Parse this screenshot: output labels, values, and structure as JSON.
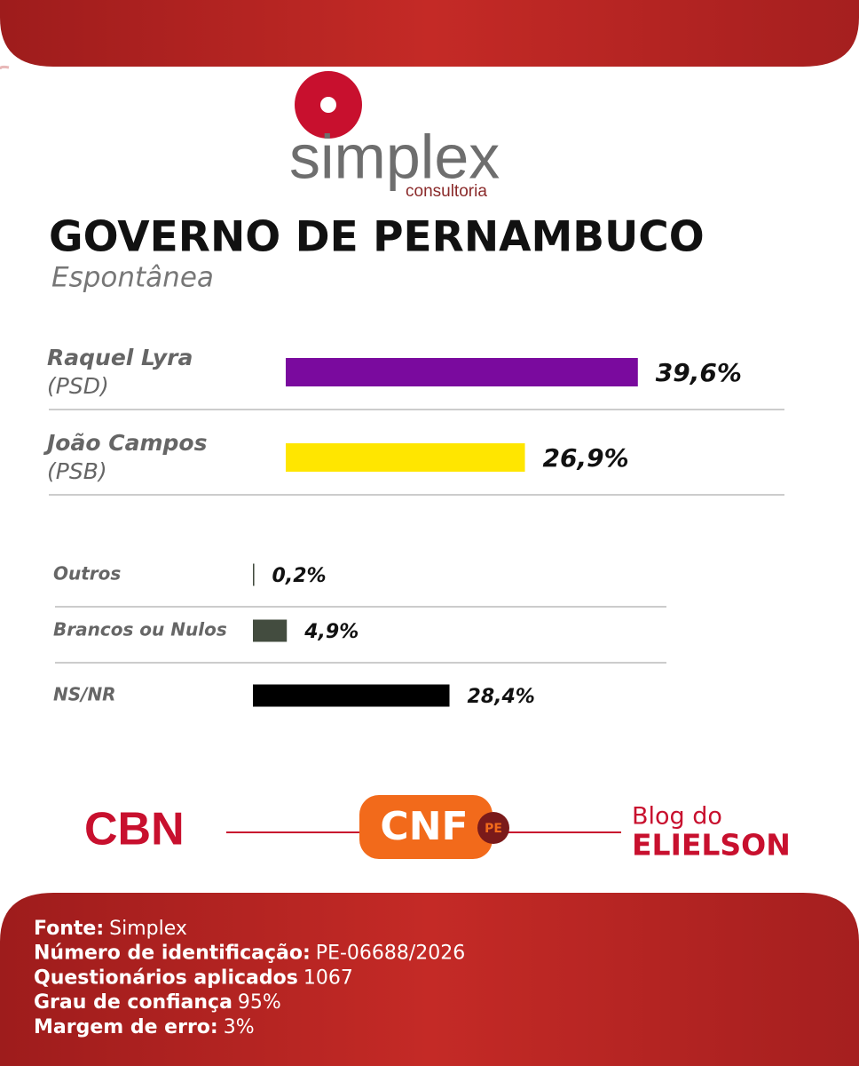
{
  "logos": {
    "brand": "simplex",
    "brand_sub": "consultoria",
    "partner1": "CBN",
    "partner2": "CNF",
    "partner2_tag": "PE",
    "partner3_top": "Blog do",
    "partner3_bottom": "ELIELSON"
  },
  "chart_data": [
    {
      "type": "bar",
      "title": "GOVERNO DE PERNAMBUCO",
      "subtitle": "Espontânea",
      "categories": [
        "Raquel Lyra",
        "João Campos"
      ],
      "parties": [
        "(PSD)",
        "(PSB)"
      ],
      "values": [
        39.6,
        26.9
      ],
      "value_labels": [
        "39,6%",
        "26,9%"
      ],
      "colors": [
        "#7a0a9e",
        "#ffe600"
      ]
    },
    {
      "type": "bar",
      "categories": [
        "Outros",
        "Brancos ou Nulos",
        "NS/NR"
      ],
      "values": [
        0.2,
        4.9,
        28.4
      ],
      "value_labels": [
        "0,2%",
        "4,9%",
        "28,4%"
      ],
      "colors": [
        "#434c3f",
        "#434c3f",
        "#000000"
      ]
    }
  ],
  "footer": [
    {
      "label": "Fonte:",
      "value": "Simplex"
    },
    {
      "label": "Número de identificação:",
      "value": "PE-06688/2026"
    },
    {
      "label": "Questionários aplicados",
      "value": "1067"
    },
    {
      "label": "Grau de confiança",
      "value": "95%"
    },
    {
      "label": "Margem de erro:",
      "value": "3%"
    }
  ]
}
